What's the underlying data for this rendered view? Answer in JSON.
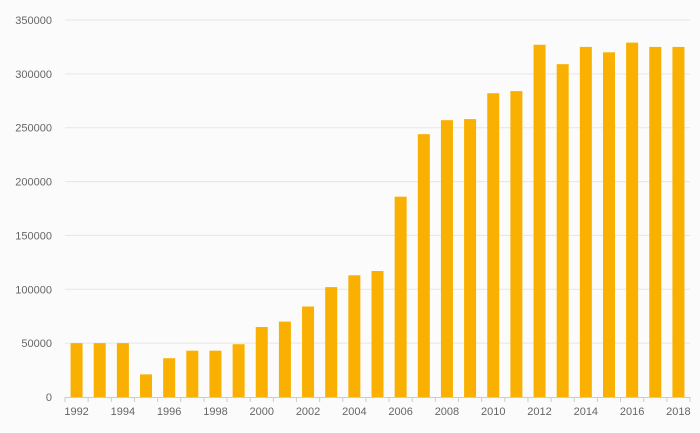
{
  "chart_data": {
    "type": "bar",
    "title": "",
    "xlabel": "",
    "ylabel": "",
    "categories": [
      "1992",
      "1993",
      "1994",
      "1995",
      "1996",
      "1997",
      "1998",
      "1999",
      "2000",
      "2001",
      "2002",
      "2003",
      "2004",
      "2005",
      "2006",
      "2007",
      "2008",
      "2009",
      "2010",
      "2011",
      "2012",
      "2013",
      "2014",
      "2015",
      "2016",
      "2017",
      "2018"
    ],
    "x_tick_labels": [
      "1992",
      "1994",
      "1996",
      "1998",
      "2000",
      "2002",
      "2004",
      "2006",
      "2008",
      "2010",
      "2012",
      "2014",
      "2016",
      "2018"
    ],
    "values": [
      50000,
      50000,
      50000,
      21000,
      36000,
      43000,
      43000,
      49000,
      65000,
      70000,
      84000,
      102000,
      113000,
      117000,
      186000,
      244000,
      257000,
      258000,
      282000,
      284000,
      327000,
      309000,
      325000,
      320000,
      329000,
      325000,
      325000
    ],
    "ylim": [
      0,
      350000
    ],
    "y_ticks": [
      "0",
      "50000",
      "100000",
      "150000",
      "200000",
      "250000",
      "300000",
      "350000"
    ],
    "grid": true,
    "legend": "none",
    "bar_color": "#f9b000"
  }
}
